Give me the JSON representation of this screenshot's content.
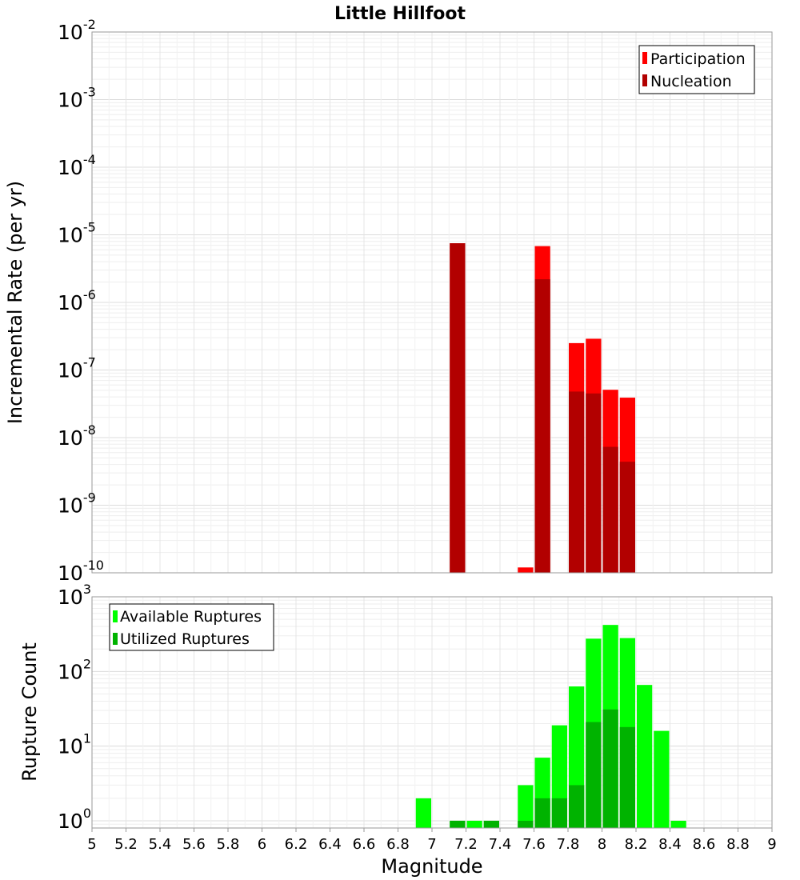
{
  "chart_data": [
    {
      "type": "bar",
      "title": "Little Hillfoot",
      "ylabel": "Incremental Rate (per yr)",
      "yscale": "log",
      "ylim": [
        1e-10,
        0.01
      ],
      "xlim": [
        5,
        9
      ],
      "y_ticks": [
        {
          "base": "10",
          "exp": "-2"
        },
        {
          "base": "10",
          "exp": "-3"
        },
        {
          "base": "10",
          "exp": "-4"
        },
        {
          "base": "10",
          "exp": "-5"
        },
        {
          "base": "10",
          "exp": "-6"
        },
        {
          "base": "10",
          "exp": "-7"
        },
        {
          "base": "10",
          "exp": "-8"
        },
        {
          "base": "10",
          "exp": "-9"
        },
        {
          "base": "10",
          "exp": "-10"
        }
      ],
      "legend": {
        "position": "top-right"
      },
      "grid": true,
      "series": [
        {
          "name": "Participation",
          "color": "#ff0000",
          "points": [
            {
              "x": 7.15,
              "y": 7.5e-06
            },
            {
              "x": 7.55,
              "y": 1.2e-10
            },
            {
              "x": 7.65,
              "y": 6.8e-06
            },
            {
              "x": 7.85,
              "y": 2.5e-07
            },
            {
              "x": 7.95,
              "y": 2.9e-07
            },
            {
              "x": 8.05,
              "y": 5.1e-08
            },
            {
              "x": 8.15,
              "y": 3.9e-08
            }
          ]
        },
        {
          "name": "Nucleation",
          "color": "#b20000",
          "points": [
            {
              "x": 7.15,
              "y": 7.5e-06
            },
            {
              "x": 7.65,
              "y": 2.2e-06
            },
            {
              "x": 7.85,
              "y": 4.8e-08
            },
            {
              "x": 7.95,
              "y": 4.5e-08
            },
            {
              "x": 8.05,
              "y": 7.3e-09
            },
            {
              "x": 8.15,
              "y": 4.4e-09
            }
          ]
        }
      ]
    },
    {
      "type": "bar",
      "xlabel": "Magnitude",
      "ylabel": "Rupture Count",
      "yscale": "log",
      "ylim": [
        0.8,
        1000
      ],
      "xlim": [
        5,
        9
      ],
      "x_ticks": [
        "5",
        "5.2",
        "5.4",
        "5.6",
        "5.8",
        "6",
        "6.2",
        "6.4",
        "6.6",
        "6.8",
        "7",
        "7.2",
        "7.4",
        "7.6",
        "7.8",
        "8",
        "8.2",
        "8.4",
        "8.6",
        "8.8",
        "9"
      ],
      "y_ticks": [
        {
          "base": "10",
          "exp": "3"
        },
        {
          "base": "10",
          "exp": "2"
        },
        {
          "base": "10",
          "exp": "1"
        },
        {
          "base": "10",
          "exp": "0"
        }
      ],
      "legend": {
        "position": "top-left"
      },
      "grid": true,
      "series": [
        {
          "name": "Available Ruptures",
          "color": "#00ff00",
          "points": [
            {
              "x": 6.95,
              "y": 2
            },
            {
              "x": 7.15,
              "y": 1
            },
            {
              "x": 7.25,
              "y": 1
            },
            {
              "x": 7.35,
              "y": 1
            },
            {
              "x": 7.55,
              "y": 3
            },
            {
              "x": 7.65,
              "y": 7
            },
            {
              "x": 7.75,
              "y": 19
            },
            {
              "x": 7.85,
              "y": 63
            },
            {
              "x": 7.95,
              "y": 275
            },
            {
              "x": 8.05,
              "y": 420
            },
            {
              "x": 8.15,
              "y": 280
            },
            {
              "x": 8.25,
              "y": 66
            },
            {
              "x": 8.35,
              "y": 16
            },
            {
              "x": 8.45,
              "y": 1
            }
          ]
        },
        {
          "name": "Utilized Ruptures",
          "color": "#00b300",
          "points": [
            {
              "x": 7.15,
              "y": 1
            },
            {
              "x": 7.35,
              "y": 1
            },
            {
              "x": 7.55,
              "y": 1
            },
            {
              "x": 7.65,
              "y": 2
            },
            {
              "x": 7.75,
              "y": 2
            },
            {
              "x": 7.85,
              "y": 3
            },
            {
              "x": 7.95,
              "y": 21
            },
            {
              "x": 8.05,
              "y": 31
            },
            {
              "x": 8.15,
              "y": 18
            }
          ]
        }
      ]
    }
  ]
}
